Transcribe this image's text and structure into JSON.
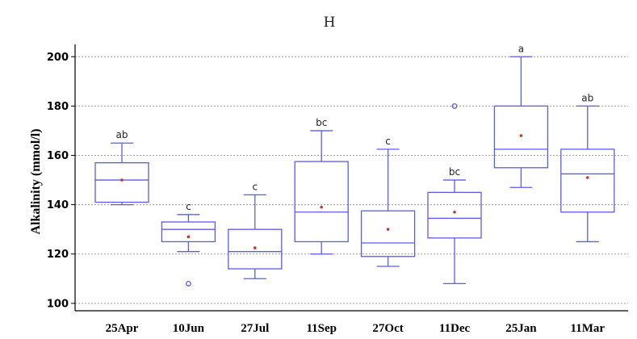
{
  "chart_data": {
    "type": "box",
    "title": "H",
    "xlabel": "",
    "ylabel": "Alkalinity (mmol/l)",
    "ylim": [
      97,
      205
    ],
    "yticks": [
      100,
      120,
      140,
      160,
      180,
      200
    ],
    "grid": "horizontal dotted",
    "box_color": "#5b5bf0",
    "mean_color": "#c0392b",
    "categories": [
      "25Apr",
      "10Jun",
      "27Jul",
      "11Sep",
      "27Oct",
      "11Dec",
      "25Jan",
      "11Mar"
    ],
    "boxes": [
      {
        "whisker_low": 140,
        "q1": 141,
        "median": 150,
        "q3": 157,
        "whisker_high": 165,
        "mean": 150,
        "outliers": [],
        "letter": "ab"
      },
      {
        "whisker_low": 121,
        "q1": 125,
        "median": 130,
        "q3": 133,
        "whisker_high": 136,
        "mean": 127,
        "outliers": [
          108
        ],
        "letter": "c"
      },
      {
        "whisker_low": 110,
        "q1": 114,
        "median": 121,
        "q3": 130,
        "whisker_high": 144,
        "mean": 122.5,
        "outliers": [],
        "letter": "c"
      },
      {
        "whisker_low": 120,
        "q1": 125,
        "median": 137,
        "q3": 157.5,
        "whisker_high": 170,
        "mean": 139,
        "outliers": [],
        "letter": "bc"
      },
      {
        "whisker_low": 115,
        "q1": 119,
        "median": 124.5,
        "q3": 137.5,
        "whisker_high": 162.5,
        "mean": 130,
        "outliers": [],
        "letter": "c"
      },
      {
        "whisker_low": 108,
        "q1": 126.5,
        "median": 134.5,
        "q3": 145,
        "whisker_high": 150,
        "mean": 137,
        "outliers": [
          180
        ],
        "letter": "bc"
      },
      {
        "whisker_low": 147,
        "q1": 155,
        "median": 162.5,
        "q3": 180,
        "whisker_high": 200,
        "mean": 168,
        "outliers": [],
        "letter": "a"
      },
      {
        "whisker_low": 125,
        "q1": 137,
        "median": 152.5,
        "q3": 162.5,
        "whisker_high": 180,
        "mean": 151,
        "outliers": [],
        "letter": "ab"
      }
    ]
  }
}
